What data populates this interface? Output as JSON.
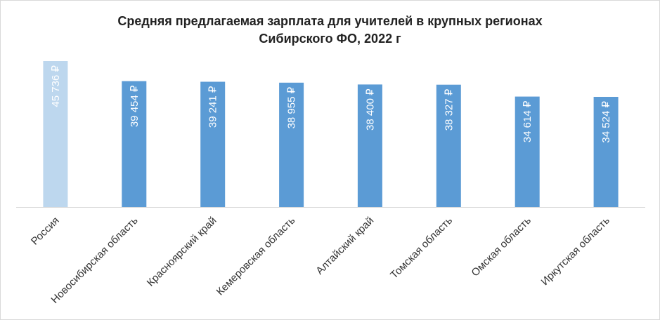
{
  "chart_data": {
    "type": "bar",
    "title_line1": "Средняя предлагаемая зарплата для учителей в крупных регионах",
    "title_line2": "Сибирского ФО, 2022 г",
    "categories": [
      "Россия",
      "Новосибирская область",
      "Красноярский край",
      "Кемеровская область",
      "Алтайский край",
      "Томская область",
      "Омская область",
      "Иркутская область"
    ],
    "values": [
      45736,
      39454,
      39241,
      38955,
      38400,
      38327,
      34614,
      34524
    ],
    "value_labels": [
      "45 736 ₽",
      "39 454 ₽",
      "39 241 ₽",
      "38 955 ₽",
      "38 400 ₽",
      "38 327 ₽",
      "34 614 ₽",
      "34 524 ₽"
    ],
    "highlight_index": 0,
    "colors": {
      "bar": "#5b9bd5",
      "highlight_bar": "#bdd7ee",
      "axis": "#d9d9d9"
    },
    "ylim": [
      0,
      45736
    ],
    "grid": false,
    "legend": "none"
  }
}
